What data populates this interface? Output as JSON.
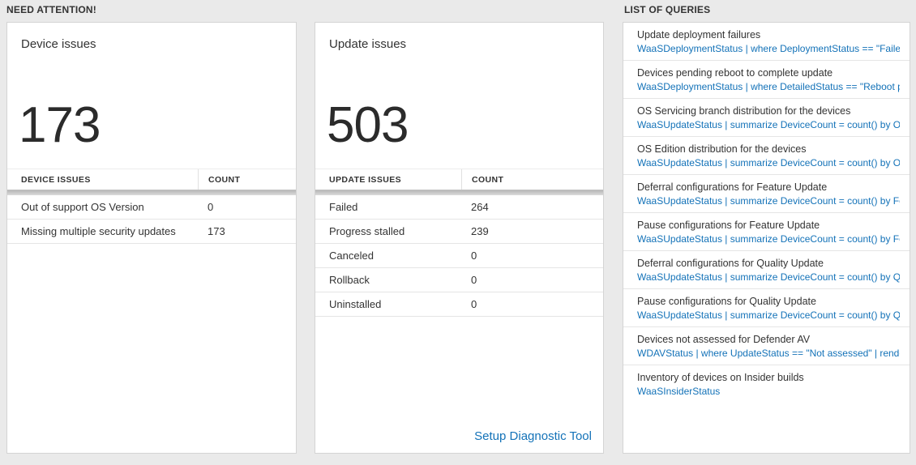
{
  "colors": {
    "accent_blue": "#1372b8",
    "page_background": "#eaeaea"
  },
  "sections": {
    "need_attention": {
      "title": "NEED ATTENTION!"
    },
    "queries": {
      "title": "LIST OF QUERIES"
    }
  },
  "device_card": {
    "title": "Device issues",
    "count": "173",
    "table": {
      "headers": [
        "DEVICE ISSUES",
        "COUNT"
      ],
      "rows": [
        {
          "label": "Out of support OS Version",
          "count": "0"
        },
        {
          "label": "Missing multiple security updates",
          "count": "173"
        }
      ]
    }
  },
  "update_card": {
    "title": "Update issues",
    "count": "503",
    "table": {
      "headers": [
        "UPDATE ISSUES",
        "COUNT"
      ],
      "rows": [
        {
          "label": "Failed",
          "count": "264"
        },
        {
          "label": "Progress stalled",
          "count": "239"
        },
        {
          "label": "Canceled",
          "count": "0"
        },
        {
          "label": "Rollback",
          "count": "0"
        },
        {
          "label": "Uninstalled",
          "count": "0"
        }
      ]
    },
    "footer_link": "Setup Diagnostic Tool"
  },
  "queries_card": {
    "items": [
      {
        "title": "Update deployment failures",
        "query": "WaaSDeploymentStatus | where DeploymentStatus == \"Failed\" |…"
      },
      {
        "title": "Devices pending reboot to complete update",
        "query": "WaaSDeploymentStatus | where DetailedStatus == \"Reboot pend…"
      },
      {
        "title": "OS Servicing branch distribution for the devices",
        "query": "WaaSUpdateStatus | summarize DeviceCount = count() by OSSer…"
      },
      {
        "title": "OS Edition distribution for the devices",
        "query": "WaaSUpdateStatus | summarize DeviceCount = count() by OSEdit…"
      },
      {
        "title": "Deferral configurations for Feature Update",
        "query": "WaaSUpdateStatus | summarize DeviceCount = count() by Featur…"
      },
      {
        "title": "Pause configurations for Feature Update",
        "query": "WaaSUpdateStatus | summarize DeviceCount = count() by Featur…"
      },
      {
        "title": "Deferral configurations for Quality Update",
        "query": "WaaSUpdateStatus | summarize DeviceCount = count() by Qualit…"
      },
      {
        "title": "Pause configurations for Quality Update",
        "query": "WaaSUpdateStatus | summarize DeviceCount = count() by Qualit…"
      },
      {
        "title": "Devices not assessed for Defender AV",
        "query": "WDAVStatus | where UpdateStatus == \"Not assessed\" | render ta…"
      },
      {
        "title": "Inventory of devices on Insider builds",
        "query": "WaaSInsiderStatus"
      }
    ]
  }
}
